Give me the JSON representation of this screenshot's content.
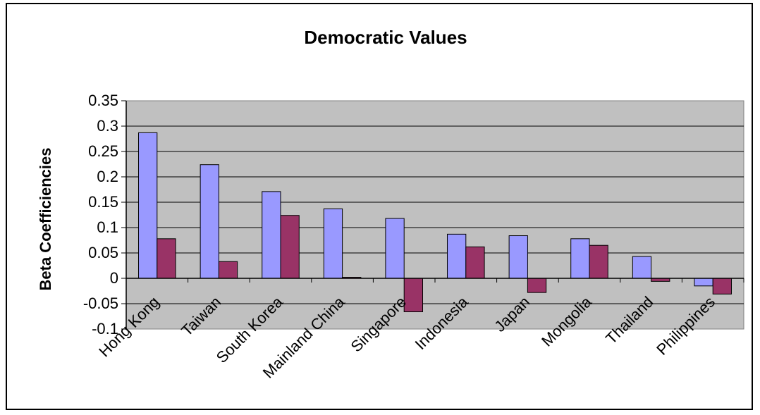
{
  "chart_data": {
    "type": "bar",
    "title": "Democratic Values",
    "xlabel": "",
    "ylabel": "Beta Coefficiencies",
    "categories": [
      "Hong Kong",
      "Taiwan",
      "South Korea",
      "Mainland China",
      "Singapore",
      "Indonesia",
      "Japan",
      "Mongolia",
      "Thailand",
      "Philippines"
    ],
    "series": [
      {
        "values": [
          0.287,
          0.224,
          0.171,
          0.137,
          0.118,
          0.087,
          0.084,
          0.078,
          0.043,
          -0.015
        ]
      },
      {
        "values": [
          0.078,
          0.033,
          0.124,
          0.002,
          -0.066,
          0.062,
          -0.028,
          0.065,
          -0.006,
          -0.031
        ]
      }
    ],
    "ylim": [
      -0.1,
      0.35
    ],
    "yticks": [
      "0.35",
      "0.3",
      "0.25",
      "0.2",
      "0.15",
      "0.1",
      "0.05",
      "0",
      "-0.05",
      "-0.1"
    ],
    "grid": true,
    "legend": "none",
    "colors": {
      "series1": "#9999ff",
      "series2": "#993366",
      "plot_background": "#c0c0c0",
      "grid": "#000000"
    }
  }
}
